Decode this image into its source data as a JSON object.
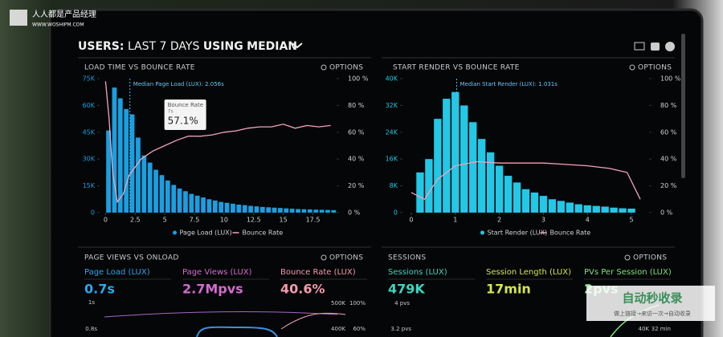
{
  "watermark_top": {
    "brand": "人人都是产品经理",
    "url": "WWW.WOSHIPM.COM"
  },
  "header": {
    "title_parts": [
      "USERS:",
      "LAST 7 DAYS",
      "USING",
      "MEDIAN"
    ]
  },
  "chart_data": [
    {
      "type": "histogram",
      "title": "LOAD TIME VS BOUNCE RATE",
      "options": "OPTIONS",
      "annotation": "Median Page Load (LUX): 2.056s",
      "median": 2.056,
      "tooltip": {
        "title": "Bounce Rate",
        "subtitle": "7s",
        "value": "57.1%"
      },
      "bins": [
        0,
        0.5,
        1,
        1.5,
        2,
        2.5,
        3,
        3.5,
        4,
        4.5,
        5,
        5.5,
        6,
        6.5,
        7,
        7.5,
        8,
        8.5,
        9,
        9.5,
        10,
        10.5,
        11,
        11.5,
        12,
        12.5,
        13,
        13.5,
        14,
        14.5,
        15,
        15.5,
        16,
        16.5,
        17,
        17.5,
        18,
        18.5,
        19,
        19.5
      ],
      "xlim": [
        -0.5,
        19.5
      ],
      "xticks": [
        0,
        2.5,
        5,
        7.5,
        10,
        12.5,
        15,
        17.5
      ],
      "ylim": [
        0,
        75000
      ],
      "yticks": [
        0,
        {
          "value": 15000,
          "label": "15K"
        },
        {
          "value": 30000,
          "label": "30K"
        },
        {
          "value": 45000,
          "label": "45K"
        },
        {
          "value": 60000,
          "label": "60K"
        },
        {
          "value": 75000,
          "label": "75K"
        }
      ],
      "y2lim": [
        0,
        100
      ],
      "y2ticks": [
        {
          "value": 0,
          "label": "0 %"
        },
        {
          "value": 20,
          "label": "20 %"
        },
        {
          "value": 40,
          "label": "40 %"
        },
        {
          "value": 60,
          "label": "60 %"
        },
        {
          "value": 80,
          "label": "80 %"
        },
        {
          "value": 100,
          "label": "100 %"
        }
      ],
      "series": [
        {
          "name": "Page Load (LUX)",
          "color": "#1a9fe0",
          "values": [
            46000,
            70000,
            64000,
            58000,
            55000,
            42000,
            32000,
            28000,
            24000,
            21000,
            18000,
            15500,
            13500,
            12000,
            10500,
            9500,
            8500,
            7500,
            6800,
            6000,
            5500,
            5000,
            4500,
            4200,
            3800,
            3500,
            3200,
            3000,
            2800,
            2600,
            2400,
            2200,
            2000,
            1900,
            1800,
            1700,
            1600,
            1500,
            1400
          ]
        },
        {
          "name": "Bounce Rate",
          "color": "#f4a3bb",
          "axis": "y2",
          "x": [
            0,
            0.3,
            0.6,
            1,
            1.5,
            2,
            3,
            4,
            5,
            6,
            7,
            8,
            9,
            10,
            11,
            12,
            13,
            14,
            15,
            16,
            17,
            18,
            19
          ],
          "values": [
            98,
            70,
            30,
            8,
            14,
            28,
            40,
            46,
            50,
            54,
            57.1,
            57,
            58,
            60,
            61,
            63,
            64,
            64,
            66,
            63,
            65,
            64,
            65
          ]
        }
      ]
    },
    {
      "type": "histogram",
      "title": "START RENDER VS BOUNCE RATE",
      "options": "OPTIONS",
      "annotation": "Median Start Render (LUX): 1.031s",
      "median": 1.031,
      "bins": [
        0.1,
        0.3,
        0.5,
        0.7,
        0.9,
        1.1,
        1.3,
        1.5,
        1.7,
        1.9,
        2.1,
        2.3,
        2.5,
        2.7,
        2.9,
        3.1,
        3.3,
        3.5,
        3.7,
        3.9,
        4.1,
        4.3,
        4.5,
        4.7,
        4.9,
        5.1
      ],
      "xlim": [
        -0.2,
        5.4
      ],
      "xticks": [
        0,
        1,
        2,
        3,
        4,
        5
      ],
      "ylim": [
        0,
        40000
      ],
      "yticks": [
        0,
        {
          "value": 8000,
          "label": "8K"
        },
        {
          "value": 16000,
          "label": "16K"
        },
        {
          "value": 24000,
          "label": "24K"
        },
        {
          "value": 32000,
          "label": "32K"
        },
        {
          "value": 40000,
          "label": "40K"
        }
      ],
      "y2lim": [
        0,
        100
      ],
      "y2ticks": [
        {
          "value": 0,
          "label": "0 %"
        },
        {
          "value": 20,
          "label": "20 %"
        },
        {
          "value": 40,
          "label": "40 %"
        },
        {
          "value": 60,
          "label": "60 %"
        },
        {
          "value": 80,
          "label": "80 %"
        },
        {
          "value": 100,
          "label": "100 %"
        }
      ],
      "series": [
        {
          "name": "Start Render (LUX)",
          "color": "#22c8e6",
          "values": [
            12000,
            16000,
            28000,
            34000,
            36000,
            32000,
            27000,
            22000,
            18000,
            14000,
            11000,
            9000,
            7000,
            6000,
            5000,
            4000,
            3500,
            3000,
            2500,
            2200,
            2000,
            1800,
            1500,
            1300,
            1200
          ]
        },
        {
          "name": "Bounce Rate",
          "color": "#f4a3bb",
          "axis": "y2",
          "x": [
            0,
            0.3,
            0.6,
            1,
            1.5,
            2,
            2.5,
            3,
            3.5,
            4,
            4.5,
            4.9,
            5.2
          ],
          "values": [
            15,
            10,
            25,
            35,
            38,
            37,
            37,
            37,
            36,
            35,
            33,
            30,
            10
          ]
        }
      ]
    }
  ],
  "panels": [
    {
      "title": "PAGE VIEWS VS ONLOAD",
      "options": "OPTIONS",
      "kpis": [
        {
          "label": "Page Load (LUX)",
          "value": "0.7s"
        },
        {
          "label": "Page Views (LUX)",
          "value": "2.7Mpvs"
        },
        {
          "label": "Bounce Rate (LUX)",
          "value": "40.6%"
        }
      ],
      "axis_labels": [
        "1s",
        "0.8s",
        "500K",
        "400K",
        "100%",
        "60%"
      ]
    },
    {
      "title": "SESSIONS",
      "options": "OPTIONS",
      "kpis": [
        {
          "label": "Sessions (LUX)",
          "value": "479K"
        },
        {
          "label": "Session Length (LUX)",
          "value": "17min"
        },
        {
          "label": "PVs Per Session (LUX)",
          "value": "2pvs"
        }
      ],
      "axis_labels": [
        "4 pvs",
        "3.2 pvs",
        "40K",
        "32 min"
      ]
    }
  ],
  "watermark_bottom": {
    "title": "自动秒收录",
    "subtitle": "做上链接→来访一次→自动收录"
  }
}
